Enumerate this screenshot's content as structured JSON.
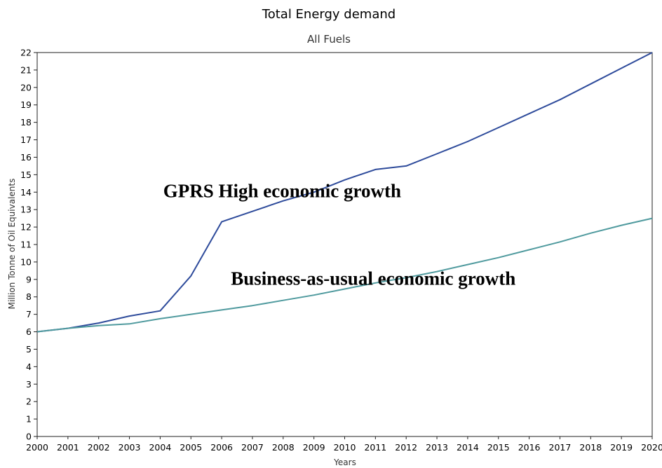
{
  "chart_data": {
    "type": "line",
    "title": "Total Energy demand",
    "subtitle": "All Fuels",
    "xlabel": "Years",
    "ylabel": "Million Tonne of Oil Equivalents",
    "xlim": [
      2000,
      2020
    ],
    "ylim": [
      0,
      22
    ],
    "x_ticks": [
      2000,
      2001,
      2002,
      2003,
      2004,
      2005,
      2006,
      2007,
      2008,
      2009,
      2010,
      2011,
      2012,
      2013,
      2014,
      2015,
      2016,
      2017,
      2018,
      2019,
      2020
    ],
    "y_ticks": [
      0,
      1,
      2,
      3,
      4,
      5,
      6,
      7,
      8,
      9,
      10,
      11,
      12,
      13,
      14,
      15,
      16,
      17,
      18,
      19,
      20,
      21,
      22
    ],
    "grid": false,
    "colors": {
      "high": "#2e4b9b",
      "bau": "#4f9a9e"
    },
    "series": [
      {
        "key": "high",
        "x": [
          2000,
          2001,
          2002,
          2003,
          2004,
          2005,
          2006,
          2007,
          2008,
          2009,
          2010,
          2011,
          2012,
          2013,
          2014,
          2015,
          2016,
          2017,
          2018,
          2019,
          2020
        ],
        "values": [
          6.0,
          6.2,
          6.5,
          6.9,
          7.2,
          9.2,
          12.3,
          12.9,
          13.5,
          14.0,
          14.7,
          15.3,
          15.5,
          16.2,
          16.9,
          17.7,
          18.5,
          19.3,
          20.2,
          21.1,
          22.0
        ]
      },
      {
        "key": "bau",
        "x": [
          2000,
          2001,
          2002,
          2003,
          2004,
          2005,
          2006,
          2007,
          2008,
          2009,
          2010,
          2011,
          2012,
          2013,
          2014,
          2015,
          2016,
          2017,
          2018,
          2019,
          2020
        ],
        "values": [
          6.0,
          6.2,
          6.35,
          6.45,
          6.75,
          7.0,
          7.25,
          7.5,
          7.8,
          8.1,
          8.45,
          8.8,
          9.1,
          9.45,
          9.85,
          10.25,
          10.7,
          11.15,
          11.65,
          12.1,
          12.5
        ]
      }
    ],
    "annotations": [
      {
        "text": "GPRS High economic growth",
        "x": 2004.1,
        "y": 13.7
      },
      {
        "text": "Business-as-usual economic growth",
        "x": 2006.3,
        "y": 8.7
      }
    ]
  }
}
